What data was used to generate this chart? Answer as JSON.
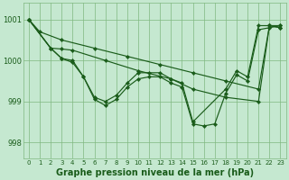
{
  "background_color": "#c5e8d0",
  "grid_color": "#80b880",
  "line_color": "#1a5c1a",
  "marker_color": "#1a5c1a",
  "xlabel": "Graphe pression niveau de la mer (hPa)",
  "xlabel_fontsize": 7,
  "xlim": [
    -0.5,
    23.5
  ],
  "ylim": [
    997.6,
    1001.4
  ],
  "yticks": [
    998,
    999,
    1000,
    1001
  ],
  "xticks": [
    0,
    1,
    2,
    3,
    4,
    5,
    6,
    7,
    8,
    9,
    10,
    11,
    12,
    13,
    14,
    15,
    16,
    17,
    18,
    19,
    20,
    21,
    22,
    23
  ],
  "s1_x": [
    0,
    1,
    3,
    6,
    9,
    12,
    15,
    18,
    21,
    22,
    23
  ],
  "s1_y": [
    1001.0,
    1000.7,
    1000.5,
    1000.3,
    1000.1,
    999.9,
    999.7,
    999.5,
    999.3,
    1000.85,
    1000.8
  ],
  "s2_x": [
    0,
    2,
    3,
    4,
    7,
    10,
    13,
    15,
    18,
    21,
    22,
    23
  ],
  "s2_y": [
    1001.0,
    1000.3,
    1000.28,
    1000.25,
    1000.0,
    999.75,
    999.55,
    999.3,
    999.1,
    999.0,
    1000.85,
    1000.8
  ],
  "s3_x": [
    0,
    2,
    3,
    4,
    5,
    6,
    7,
    8,
    9,
    10,
    11,
    12,
    13,
    14,
    15,
    18,
    19,
    20,
    21,
    22,
    23
  ],
  "s3_y": [
    1001.0,
    1000.3,
    1000.05,
    999.95,
    999.6,
    999.1,
    999.0,
    999.15,
    999.45,
    999.7,
    999.7,
    999.7,
    999.55,
    999.45,
    998.5,
    999.3,
    999.75,
    999.6,
    1000.85,
    1000.85,
    1000.85
  ],
  "s4_x": [
    0,
    2,
    3,
    4,
    5,
    6,
    7,
    8,
    9,
    10,
    11,
    12,
    13,
    14,
    15,
    16,
    17,
    18,
    19,
    20,
    21,
    22,
    23
  ],
  "s4_y": [
    1001.0,
    1000.3,
    1000.05,
    1000.0,
    999.6,
    999.05,
    998.9,
    999.05,
    999.35,
    999.55,
    999.6,
    999.6,
    999.45,
    999.35,
    998.45,
    998.4,
    998.45,
    999.2,
    999.65,
    999.5,
    1000.75,
    1000.8,
    1000.85
  ]
}
